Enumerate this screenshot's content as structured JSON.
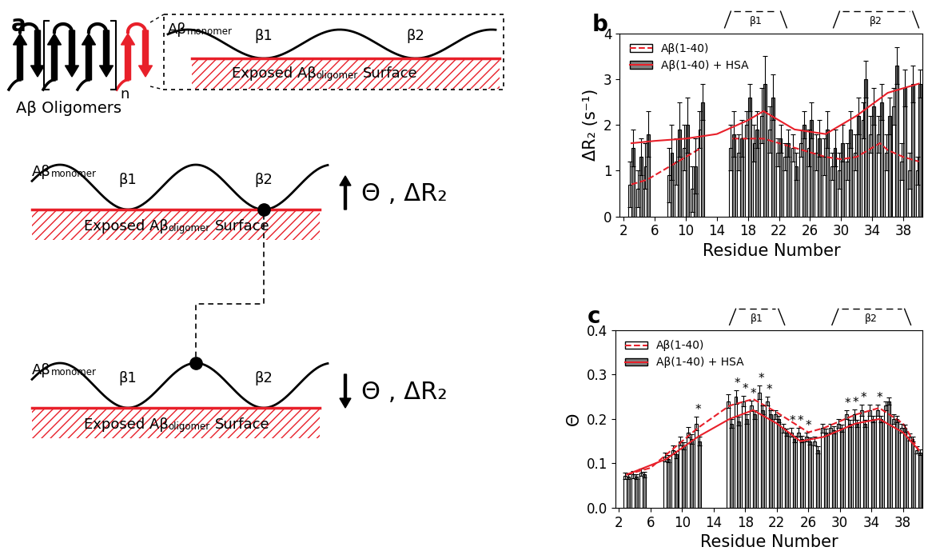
{
  "diagram": {
    "panel": "a",
    "oligomer_label": "Aβ Oligomers",
    "repeat_label": "n",
    "monomer": [
      "Aβ",
      "monomer"
    ],
    "strand_labels": [
      "β1",
      "β2"
    ],
    "surface": [
      "Exposed Aβ",
      "oligomer",
      "Surface"
    ],
    "states": [
      {
        "direction": "up",
        "label": "Θ , ΔR₂"
      },
      {
        "direction": "down",
        "label": "Θ , ΔR₂"
      }
    ]
  },
  "chart_data": [
    {
      "panel": "b",
      "type": "bar",
      "xlabel": "Residue Number",
      "ylabel": "ΔR₂ (s⁻¹)",
      "x": [
        3,
        4,
        5,
        8,
        9,
        10,
        11,
        12,
        16,
        17,
        18,
        19,
        20,
        21,
        22,
        23,
        24,
        25,
        26,
        27,
        28,
        29,
        30,
        31,
        32,
        33,
        34,
        35,
        36,
        37,
        38,
        39,
        40
      ],
      "xlim": [
        1.5,
        40.5
      ],
      "xticks": [
        2,
        6,
        10,
        14,
        18,
        22,
        26,
        30,
        34,
        38
      ],
      "ylim": [
        0,
        4
      ],
      "yticks": [
        0,
        1,
        2,
        3,
        4
      ],
      "legend": "upper left",
      "regions": [
        {
          "label": "β1",
          "start": 15,
          "end": 23
        },
        {
          "label": "β2",
          "start": 29,
          "end": 40
        }
      ],
      "series": [
        {
          "name": "Aβ(1-40)",
          "color": "#ffffff",
          "values": [
            0.7,
            0.6,
            1.1,
            0.9,
            1.2,
            1.5,
            0.6,
            1.9,
            1.5,
            1.4,
            2.0,
            1.6,
            2.2,
            1.9,
            1.4,
            1.3,
            1.5,
            1.6,
            1.5,
            1.4,
            1.3,
            1.1,
            1.0,
            1.2,
            1.4,
            2.1,
            1.8,
            1.8,
            1.4,
            2.4,
            1.2,
            1.0,
            1.0
          ],
          "errors": [
            0.5,
            0.4,
            0.5,
            0.6,
            0.5,
            0.5,
            0.5,
            0.4,
            0.5,
            0.4,
            0.3,
            0.4,
            0.6,
            0.5,
            0.3,
            0.3,
            0.3,
            0.3,
            0.4,
            0.4,
            0.4,
            0.3,
            0.4,
            0.4,
            0.4,
            0.4,
            0.4,
            0.4,
            0.4,
            0.4,
            0.4,
            0.4,
            0.3
          ],
          "trend": {
            "color": "#e8202a",
            "line_style": "dashed",
            "x": [
              3,
              5,
              7,
              9,
              11,
              12,
              13,
              16,
              18,
              20,
              22,
              24,
              26,
              28,
              30,
              32,
              34,
              35,
              36,
              38,
              40
            ],
            "values": [
              0.7,
              0.8,
              1.0,
              1.2,
              1.4,
              1.5,
              null,
              1.7,
              1.7,
              1.7,
              1.6,
              1.5,
              1.4,
              1.3,
              1.25,
              1.3,
              1.5,
              1.6,
              1.45,
              1.3,
              1.2
            ]
          }
        },
        {
          "name": "Aβ(1-40) + HSA",
          "color": "#808080",
          "values": [
            1.5,
            1.3,
            1.8,
            1.4,
            1.9,
            2.0,
            1.1,
            2.5,
            1.8,
            1.7,
            2.6,
            1.9,
            2.9,
            2.6,
            1.7,
            1.6,
            1.1,
            2.0,
            2.1,
            1.7,
            1.9,
            1.5,
            1.6,
            1.9,
            2.2,
            3.0,
            2.4,
            2.5,
            2.2,
            3.3,
            2.8,
            2.9,
            2.9
          ],
          "errors": [
            0.4,
            0.4,
            0.5,
            0.6,
            0.6,
            0.6,
            0.6,
            0.4,
            0.5,
            0.4,
            0.3,
            0.4,
            0.6,
            0.5,
            0.3,
            0.3,
            0.3,
            0.3,
            0.4,
            0.4,
            0.4,
            0.4,
            0.4,
            0.4,
            0.4,
            0.4,
            0.4,
            0.4,
            0.4,
            0.4,
            0.4,
            0.4,
            0.3
          ],
          "trend": {
            "color": "#e8202a",
            "line_style": "solid",
            "x": [
              3,
              6,
              10,
              14,
              18,
              20,
              22,
              24,
              28,
              32,
              36,
              40
            ],
            "values": [
              1.6,
              1.65,
              1.7,
              1.8,
              2.1,
              2.3,
              2.1,
              1.9,
              1.8,
              2.2,
              2.7,
              2.9
            ]
          }
        }
      ]
    },
    {
      "panel": "c",
      "type": "bar",
      "xlabel": "Residue Number",
      "ylabel": "Θ",
      "x": [
        3,
        4,
        5,
        8,
        9,
        10,
        11,
        12,
        16,
        17,
        18,
        19,
        20,
        21,
        22,
        23,
        24,
        25,
        26,
        27,
        28,
        29,
        30,
        31,
        32,
        33,
        34,
        35,
        36,
        37,
        38,
        39,
        40
      ],
      "xlim": [
        1.5,
        40.5
      ],
      "xticks": [
        2,
        6,
        10,
        14,
        18,
        22,
        26,
        30,
        34,
        38
      ],
      "ylim": [
        0.0,
        0.4
      ],
      "yticks": [
        0.0,
        0.1,
        0.2,
        0.3,
        0.4
      ],
      "legend": "upper left",
      "regions": [
        {
          "label": "β1",
          "start": 16,
          "end": 23
        },
        {
          "label": "β2",
          "start": 29,
          "end": 39
        }
      ],
      "significance": {
        "label": "*",
        "residues": [
          12,
          17,
          18,
          19,
          20,
          21,
          24,
          25,
          26,
          31,
          32,
          33,
          35
        ]
      },
      "series": [
        {
          "name": "Aβ(1-40)",
          "color": "#ffffff",
          "values": [
            0.072,
            0.075,
            0.08,
            0.115,
            0.13,
            0.15,
            0.17,
            0.19,
            0.24,
            0.25,
            0.24,
            0.23,
            0.26,
            0.24,
            0.21,
            0.18,
            0.17,
            0.17,
            0.16,
            0.15,
            0.18,
            0.18,
            0.19,
            0.21,
            0.21,
            0.22,
            0.22,
            0.22,
            0.23,
            0.2,
            0.18,
            0.16,
            0.13
          ],
          "errors": [
            0.008,
            0.008,
            0.008,
            0.01,
            0.01,
            0.01,
            0.012,
            0.015,
            0.015,
            0.015,
            0.012,
            0.012,
            0.015,
            0.01,
            0.01,
            0.01,
            0.01,
            0.01,
            0.01,
            0.01,
            0.01,
            0.01,
            0.01,
            0.01,
            0.012,
            0.012,
            0.012,
            0.012,
            0.01,
            0.01,
            0.01,
            0.008,
            0.008
          ],
          "trend": {
            "color": "#e8202a",
            "line_style": "dashed",
            "x": [
              3,
              6,
              8,
              12,
              16,
              19,
              22,
              26,
              28,
              32,
              35,
              38,
              40
            ],
            "values": [
              0.075,
              0.09,
              0.12,
              0.18,
              0.23,
              0.245,
              0.215,
              0.17,
              0.18,
              0.21,
              0.225,
              0.19,
              0.13
            ]
          }
        },
        {
          "name": "Aβ(1-40) + HSA",
          "color": "#808080",
          "values": [
            0.07,
            0.07,
            0.075,
            0.11,
            0.12,
            0.14,
            0.155,
            0.15,
            0.19,
            0.195,
            0.2,
            0.21,
            0.22,
            0.21,
            0.2,
            0.17,
            0.155,
            0.155,
            0.15,
            0.13,
            0.17,
            0.175,
            0.18,
            0.19,
            0.19,
            0.19,
            0.2,
            0.2,
            0.24,
            0.2,
            0.18,
            0.155,
            0.125
          ],
          "errors": [
            0.006,
            0.006,
            0.006,
            0.008,
            0.008,
            0.008,
            0.01,
            0.01,
            0.01,
            0.01,
            0.01,
            0.01,
            0.01,
            0.01,
            0.008,
            0.008,
            0.008,
            0.008,
            0.008,
            0.008,
            0.008,
            0.008,
            0.008,
            0.008,
            0.008,
            0.008,
            0.008,
            0.008,
            0.008,
            0.008,
            0.008,
            0.006,
            0.006
          ],
          "trend": {
            "color": "#e8202a",
            "line_style": "solid",
            "x": [
              3,
              8,
              12,
              16,
              19,
              22,
              25,
              28,
              32,
              35,
              38,
              40
            ],
            "values": [
              0.075,
              0.11,
              0.16,
              0.2,
              0.22,
              0.19,
              0.15,
              0.16,
              0.19,
              0.2,
              0.17,
              0.13
            ]
          }
        }
      ]
    }
  ]
}
